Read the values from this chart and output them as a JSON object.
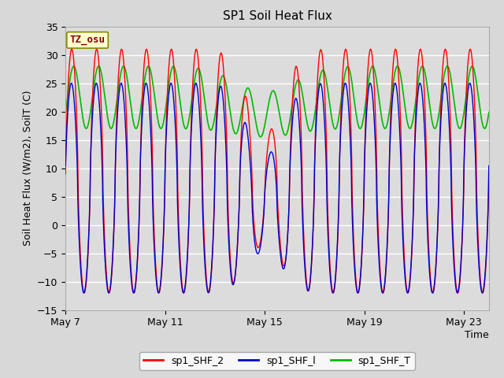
{
  "title": "SP1 Soil Heat Flux",
  "xlabel": "Time",
  "ylabel": "Soil Heat Flux (W/m2), SoilT (C)",
  "ylim": [
    -15,
    35
  ],
  "yticks": [
    -15,
    -10,
    -5,
    0,
    5,
    10,
    15,
    20,
    25,
    30,
    35
  ],
  "xtick_labels": [
    "May 7",
    "May 11",
    "May 15",
    "May 19",
    "May 23"
  ],
  "xtick_positions": [
    0,
    4,
    8,
    12,
    16
  ],
  "n_days": 17,
  "points_per_day": 288,
  "title_fontsize": 11,
  "axis_label_fontsize": 9,
  "tick_fontsize": 9,
  "legend_fontsize": 9,
  "bg_color": "#d8d8d8",
  "plot_bg_color": "#dcdcdc",
  "grid_color": "white",
  "tz_box_color": "#ffffcc",
  "tz_text": "TZ_osu",
  "tz_text_color": "#8b0000",
  "line_colors": {
    "sp1_SHF_2": "#ff0000",
    "sp1_SHF_l": "#0000cc",
    "sp1_SHF_T": "#00bb00"
  },
  "line_width": 1.0
}
